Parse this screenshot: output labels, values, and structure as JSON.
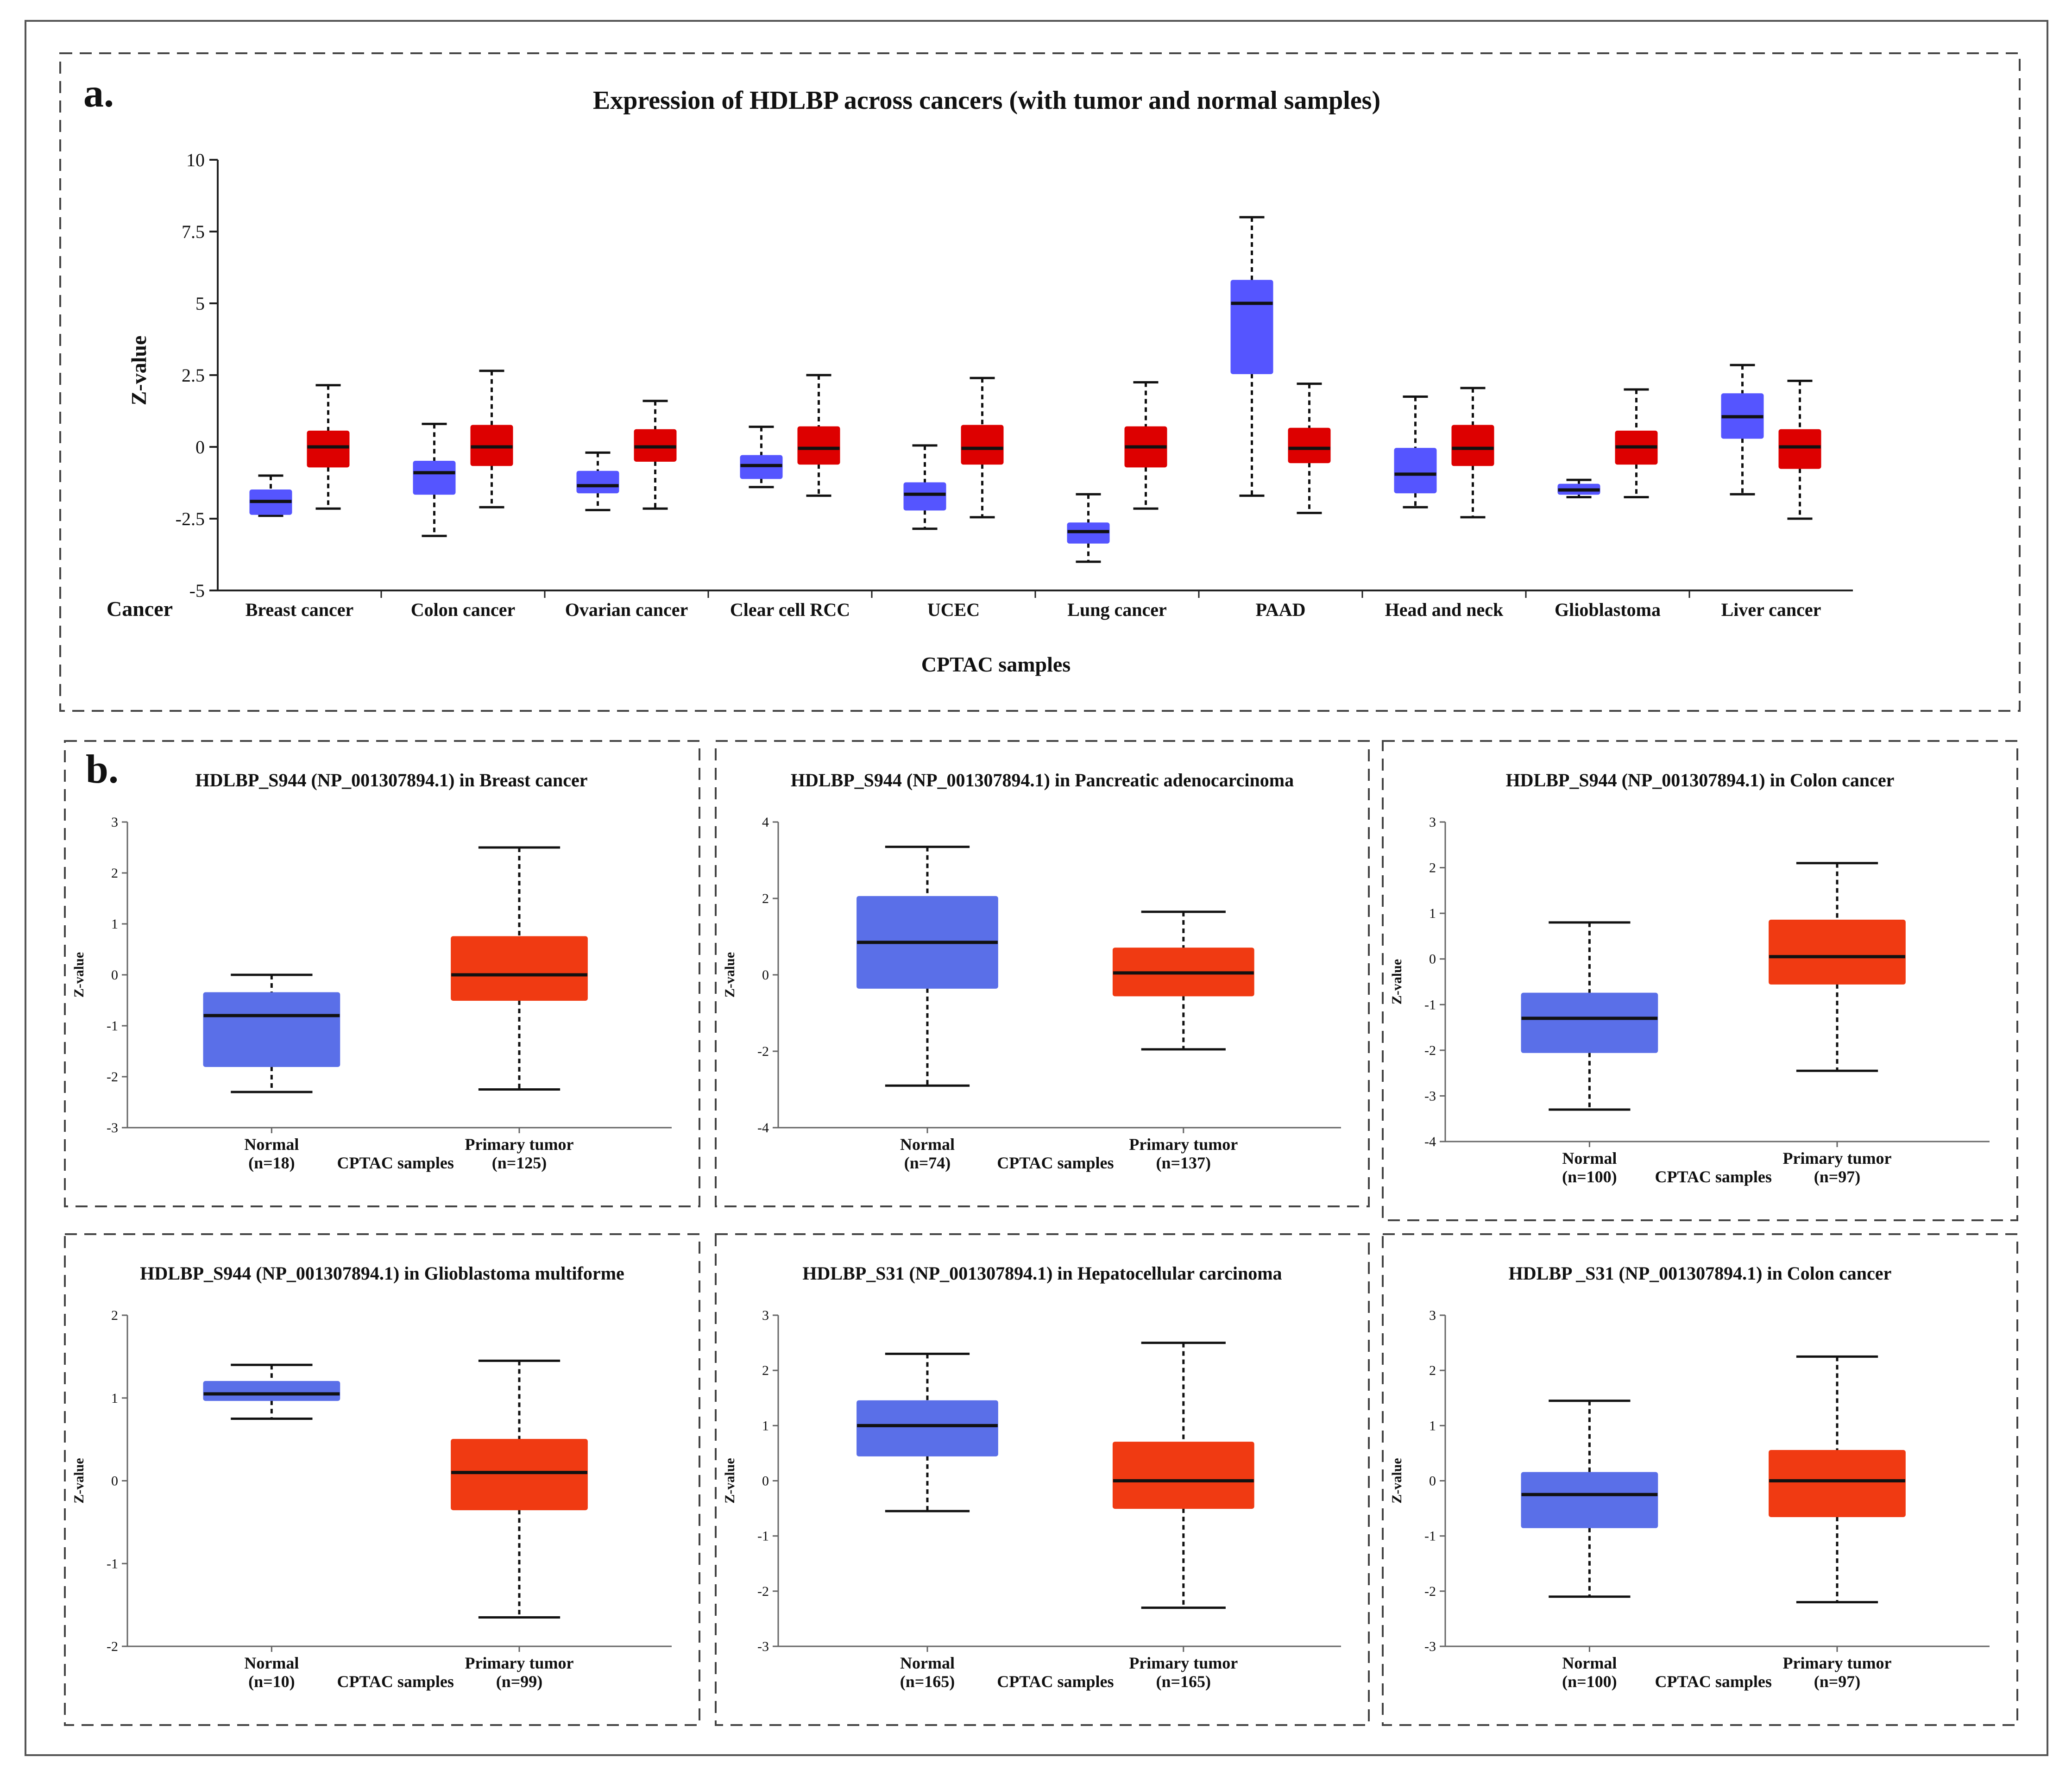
{
  "colors": {
    "normal_a": "#5555ff",
    "tumor_a": "#dd0000",
    "normal_b": "#5a6fe8",
    "tumor_b": "#f03a12",
    "frame": "#555555",
    "dash": "#444444"
  },
  "chart_data": [
    {
      "id": "a",
      "panel_label": "a.",
      "type": "boxplot",
      "title": "Expression of HDLBP across cancers (with tumor and normal samples)",
      "ylabel": "Z-value",
      "xlabel": "CPTAC samples",
      "category_header": "Cancer",
      "ylim": [
        -5,
        10
      ],
      "yticks": [
        {
          "value": 10,
          "label": "10"
        },
        {
          "value": 7.5,
          "label": "7.5"
        },
        {
          "value": 5,
          "label": "5"
        },
        {
          "value": 2.5,
          "label": "2.5"
        },
        {
          "value": 0,
          "label": "0"
        },
        {
          "value": -2.5,
          "label": "-2.5"
        },
        {
          "value": -5,
          "label": "-5"
        }
      ],
      "categories": [
        {
          "label": "Breast cancer",
          "normal": {
            "min": -2.4,
            "q1": -2.35,
            "median": -1.9,
            "q3": -1.5,
            "max": -1.0
          },
          "tumor": {
            "min": -2.15,
            "q1": -0.7,
            "median": 0.0,
            "q3": 0.55,
            "max": 2.15
          }
        },
        {
          "label": "Colon cancer",
          "normal": {
            "min": -3.1,
            "q1": -1.65,
            "median": -0.9,
            "q3": -0.5,
            "max": 0.8
          },
          "tumor": {
            "min": -2.1,
            "q1": -0.65,
            "median": 0.0,
            "q3": 0.75,
            "max": 2.65
          }
        },
        {
          "label": "Ovarian cancer",
          "normal": {
            "min": -2.2,
            "q1": -1.6,
            "median": -1.35,
            "q3": -0.85,
            "max": -0.2
          },
          "tumor": {
            "min": -2.15,
            "q1": -0.5,
            "median": 0.0,
            "q3": 0.6,
            "max": 1.6
          }
        },
        {
          "label": "Clear cell RCC",
          "normal": {
            "min": -1.4,
            "q1": -1.1,
            "median": -0.65,
            "q3": -0.3,
            "max": 0.7
          },
          "tumor": {
            "min": -1.7,
            "q1": -0.6,
            "median": -0.05,
            "q3": 0.7,
            "max": 2.5
          }
        },
        {
          "label": "UCEC",
          "normal": {
            "min": -2.85,
            "q1": -2.2,
            "median": -1.65,
            "q3": -1.25,
            "max": 0.05
          },
          "tumor": {
            "min": -2.45,
            "q1": -0.6,
            "median": -0.05,
            "q3": 0.75,
            "max": 2.4
          }
        },
        {
          "label": "Lung cancer",
          "normal": {
            "min": -4.0,
            "q1": -3.35,
            "median": -2.95,
            "q3": -2.65,
            "max": -1.65
          },
          "tumor": {
            "min": -2.15,
            "q1": -0.7,
            "median": 0.0,
            "q3": 0.7,
            "max": 2.25
          }
        },
        {
          "label": "PAAD",
          "normal": {
            "min": -1.7,
            "q1": 2.55,
            "median": 5.0,
            "q3": 5.8,
            "max": 8.0
          },
          "tumor": {
            "min": -2.3,
            "q1": -0.55,
            "median": -0.05,
            "q3": 0.65,
            "max": 2.2
          }
        },
        {
          "label": "Head and neck",
          "normal": {
            "min": -2.1,
            "q1": -1.6,
            "median": -0.95,
            "q3": -0.05,
            "max": 1.75
          },
          "tumor": {
            "min": -2.45,
            "q1": -0.65,
            "median": -0.05,
            "q3": 0.75,
            "max": 2.05
          }
        },
        {
          "label": "Glioblastoma",
          "normal": {
            "min": -1.75,
            "q1": -1.65,
            "median": -1.5,
            "q3": -1.3,
            "max": -1.15
          },
          "tumor": {
            "min": -1.75,
            "q1": -0.6,
            "median": 0.0,
            "q3": 0.55,
            "max": 2.0
          }
        },
        {
          "label": "Liver cancer",
          "normal": {
            "min": -1.65,
            "q1": 0.3,
            "median": 1.05,
            "q3": 1.85,
            "max": 2.85
          },
          "tumor": {
            "min": -2.5,
            "q1": -0.75,
            "median": 0.0,
            "q3": 0.6,
            "max": 2.3
          }
        }
      ]
    },
    {
      "id": "b1",
      "panel_label": "b.",
      "type": "boxplot",
      "title": "HDLBP_S944 (NP_001307894.1) in Breast cancer",
      "ylabel": "Z-value",
      "xlabel": "CPTAC samples",
      "ylim": [
        -3,
        3
      ],
      "yticks": [
        3,
        2,
        1,
        0,
        -1,
        -2,
        -3
      ],
      "normal": {
        "name": "Normal",
        "n": "(n=18)",
        "min": -2.3,
        "q1": -1.8,
        "median": -0.8,
        "q3": -0.35,
        "max": 0.0
      },
      "tumor": {
        "name": "Primary tumor",
        "n": "(n=125)",
        "min": -2.25,
        "q1": -0.5,
        "median": 0.0,
        "q3": 0.75,
        "max": 2.5
      }
    },
    {
      "id": "b2",
      "type": "boxplot",
      "title": "HDLBP_S944 (NP_001307894.1) in Pancreatic adenocarcinoma",
      "ylabel": "Z-value",
      "xlabel": "CPTAC samples",
      "ylim": [
        -4,
        4
      ],
      "yticks": [
        4,
        2,
        0,
        -2,
        -4
      ],
      "normal": {
        "name": "Normal",
        "n": "(n=74)",
        "min": -2.9,
        "q1": -0.35,
        "median": 0.85,
        "q3": 2.05,
        "max": 3.35
      },
      "tumor": {
        "name": "Primary tumor",
        "n": "(n=137)",
        "min": -1.95,
        "q1": -0.55,
        "median": 0.05,
        "q3": 0.7,
        "max": 1.65
      }
    },
    {
      "id": "b3",
      "type": "boxplot",
      "title": "HDLBP_S944 (NP_001307894.1) in Colon cancer",
      "ylabel": "Z-value",
      "xlabel": "CPTAC samples",
      "ylim": [
        -4,
        3
      ],
      "yticks": [
        3,
        2,
        1,
        0,
        -1,
        -2,
        -3,
        -4
      ],
      "normal": {
        "name": "Normal",
        "n": "(n=100)",
        "min": -3.3,
        "q1": -2.05,
        "median": -1.3,
        "q3": -0.75,
        "max": 0.8
      },
      "tumor": {
        "name": "Primary tumor",
        "n": "(n=97)",
        "min": -2.45,
        "q1": -0.55,
        "median": 0.05,
        "q3": 0.85,
        "max": 2.1
      }
    },
    {
      "id": "b4",
      "type": "boxplot",
      "title": "HDLBP_S944 (NP_001307894.1) in Glioblastoma multiforme",
      "ylabel": "Z-value",
      "xlabel": "CPTAC samples",
      "ylim": [
        -2,
        2
      ],
      "yticks": [
        2,
        1,
        0,
        -1,
        -2
      ],
      "normal": {
        "name": "Normal",
        "n": "(n=10)",
        "min": 0.75,
        "q1": 0.97,
        "median": 1.05,
        "q3": 1.2,
        "max": 1.4
      },
      "tumor": {
        "name": "Primary tumor",
        "n": "(n=99)",
        "min": -1.65,
        "q1": -0.35,
        "median": 0.1,
        "q3": 0.5,
        "max": 1.45
      }
    },
    {
      "id": "b5",
      "type": "boxplot",
      "title": "HDLBP_S31 (NP_001307894.1) in Hepatocellular carcinoma",
      "ylabel": "Z-value",
      "xlabel": "CPTAC samples",
      "ylim": [
        -3,
        3
      ],
      "yticks": [
        3,
        2,
        1,
        0,
        -1,
        -2,
        -3
      ],
      "normal": {
        "name": "Normal",
        "n": "(n=165)",
        "min": -0.55,
        "q1": 0.45,
        "median": 1.0,
        "q3": 1.45,
        "max": 2.3
      },
      "tumor": {
        "name": "Primary tumor",
        "n": "(n=165)",
        "min": -2.3,
        "q1": -0.5,
        "median": 0.0,
        "q3": 0.7,
        "max": 2.5
      }
    },
    {
      "id": "b6",
      "type": "boxplot",
      "title": "HDLBP _S31 (NP_001307894.1) in Colon cancer",
      "ylabel": "Z-value",
      "xlabel": "CPTAC samples",
      "ylim": [
        -3,
        3
      ],
      "yticks": [
        3,
        2,
        1,
        0,
        -1,
        -2,
        -3
      ],
      "normal": {
        "name": "Normal",
        "n": "(n=100)",
        "min": -2.1,
        "q1": -0.85,
        "median": -0.25,
        "q3": 0.15,
        "max": 1.45
      },
      "tumor": {
        "name": "Primary tumor",
        "n": "(n=97)",
        "min": -2.2,
        "q1": -0.65,
        "median": 0.0,
        "q3": 0.55,
        "max": 2.25
      }
    }
  ]
}
